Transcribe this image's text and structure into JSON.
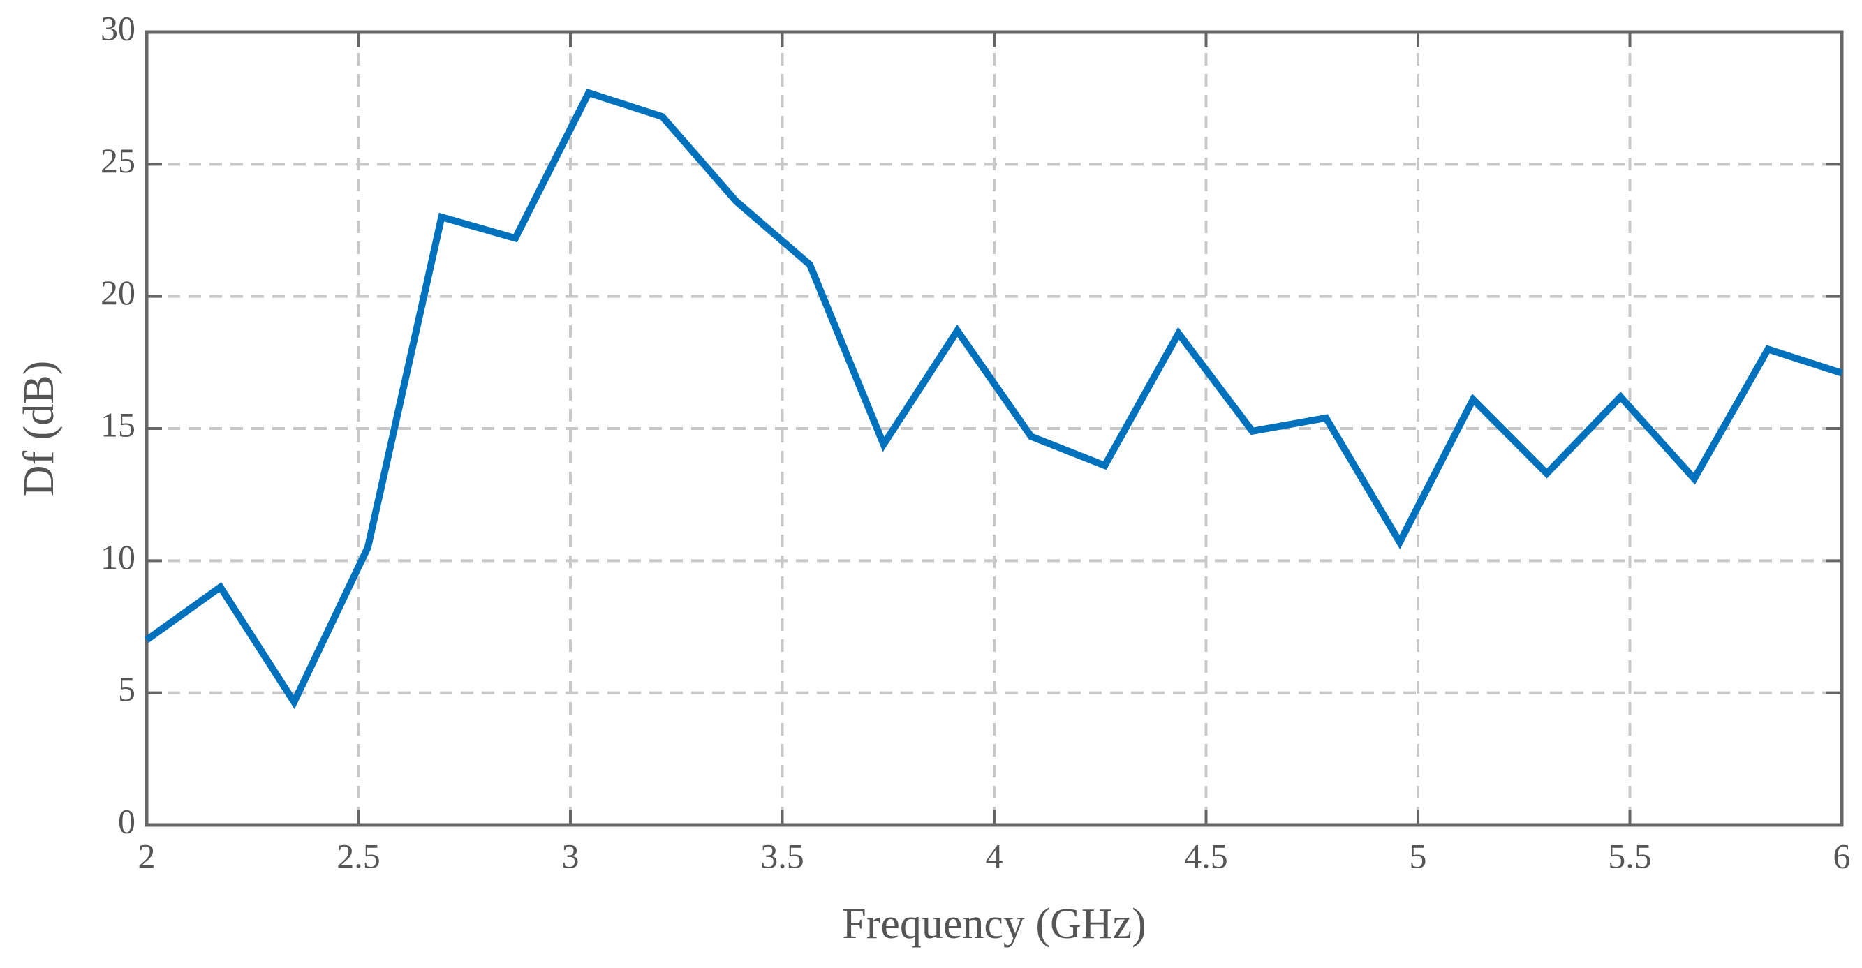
{
  "chart_data": {
    "type": "line",
    "x_label": "Frequency (GHz)",
    "y_label": "Df (dB)",
    "x": [
      2,
      2.174,
      2.348,
      2.522,
      2.696,
      2.87,
      3.043,
      3.217,
      3.391,
      3.565,
      3.739,
      3.913,
      4.087,
      4.261,
      4.435,
      4.609,
      4.783,
      4.957,
      5.13,
      5.304,
      5.478,
      5.652,
      5.826,
      6
    ],
    "series": [
      {
        "color": "#0072bd",
        "values": [
          7.0,
          9.0,
          4.65,
          10.5,
          23.0,
          22.2,
          27.7,
          26.8,
          23.6,
          21.2,
          14.4,
          18.7,
          14.7,
          13.6,
          18.6,
          14.9,
          15.4,
          10.7,
          16.1,
          13.3,
          16.2,
          13.1,
          18.0,
          17.1
        ]
      }
    ],
    "xlim": [
      2,
      6
    ],
    "ylim": [
      0,
      30
    ],
    "xticks": [
      2,
      2.5,
      3,
      3.5,
      4,
      4.5,
      5,
      5.5,
      6
    ],
    "yticks": [
      0,
      5,
      10,
      15,
      20,
      25,
      30
    ],
    "grid": true
  }
}
